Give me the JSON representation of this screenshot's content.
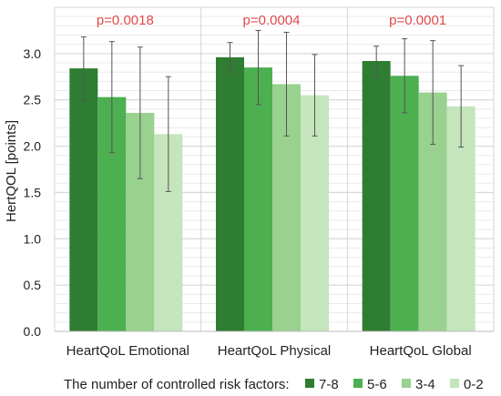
{
  "chart_data": {
    "type": "bar",
    "ylabel": "HertQOL [points]",
    "ylim": [
      0,
      3.5
    ],
    "yticks": [
      "0.0",
      "0.5",
      "1.0",
      "1.5",
      "2.0",
      "2.5",
      "3.0"
    ],
    "ytick_values": [
      0,
      0.5,
      1,
      1.5,
      2,
      2.5,
      3
    ],
    "grid": "horizontal",
    "categories": [
      "HeartQoL Emotional",
      "HeartQoL Physical",
      "HeartQoL Global"
    ],
    "p_values": [
      "p=0.0018",
      "p=0.0004",
      "p=0.0001"
    ],
    "legend_title": "The number of controlled risk factors:",
    "legend_position": "bottom",
    "series": [
      {
        "name": "7-8",
        "color": "#2e7d32",
        "values": [
          2.84,
          2.96,
          2.92
        ],
        "errors": [
          0.34,
          0.16,
          0.16
        ]
      },
      {
        "name": "5-6",
        "color": "#4caf50",
        "values": [
          2.53,
          2.85,
          2.76
        ],
        "errors": [
          0.6,
          0.4,
          0.4
        ]
      },
      {
        "name": "3-4",
        "color": "#99d18f",
        "values": [
          2.36,
          2.67,
          2.58
        ],
        "errors": [
          0.71,
          0.56,
          0.56
        ]
      },
      {
        "name": "0-2",
        "color": "#c5e5bd",
        "values": [
          2.13,
          2.55,
          2.43
        ],
        "errors": [
          0.62,
          0.44,
          0.44
        ]
      }
    ]
  }
}
